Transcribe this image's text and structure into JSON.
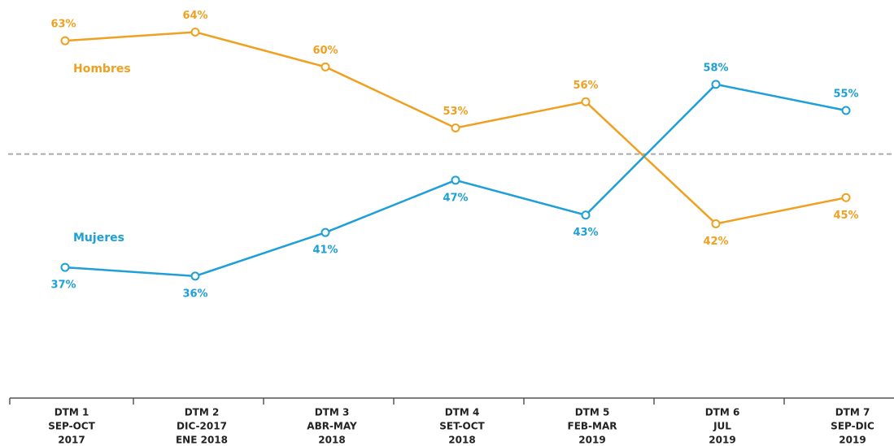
{
  "chart_data": {
    "type": "line",
    "categories": [
      [
        "DTM 1",
        "SEP-OCT",
        "2017"
      ],
      [
        "DTM 2",
        "DIC-2017",
        "ENE 2018"
      ],
      [
        "DTM 3",
        "ABR-MAY",
        "2018"
      ],
      [
        "DTM 4",
        "SET-OCT",
        "2018"
      ],
      [
        "DTM 5",
        "FEB-MAR",
        "2019"
      ],
      [
        "DTM 6",
        "JUL",
        "2019"
      ],
      [
        "DTM 7",
        "SEP-DIC",
        "2019"
      ]
    ],
    "series": [
      {
        "name": "Hombres",
        "color": "#f0a020",
        "values": [
          63,
          64,
          60,
          53,
          56,
          42,
          45
        ],
        "value_labels": [
          "63%",
          "64%",
          "60%",
          "53%",
          "56%",
          "42%",
          "45%"
        ]
      },
      {
        "name": "Mujeres",
        "color": "#1e9fd8",
        "values": [
          37,
          36,
          41,
          47,
          43,
          58,
          55
        ],
        "value_labels": [
          "37%",
          "36%",
          "41%",
          "47%",
          "43%",
          "58%",
          "55%"
        ]
      }
    ],
    "ylim": [
      22,
      66
    ],
    "reference_line": 50
  }
}
